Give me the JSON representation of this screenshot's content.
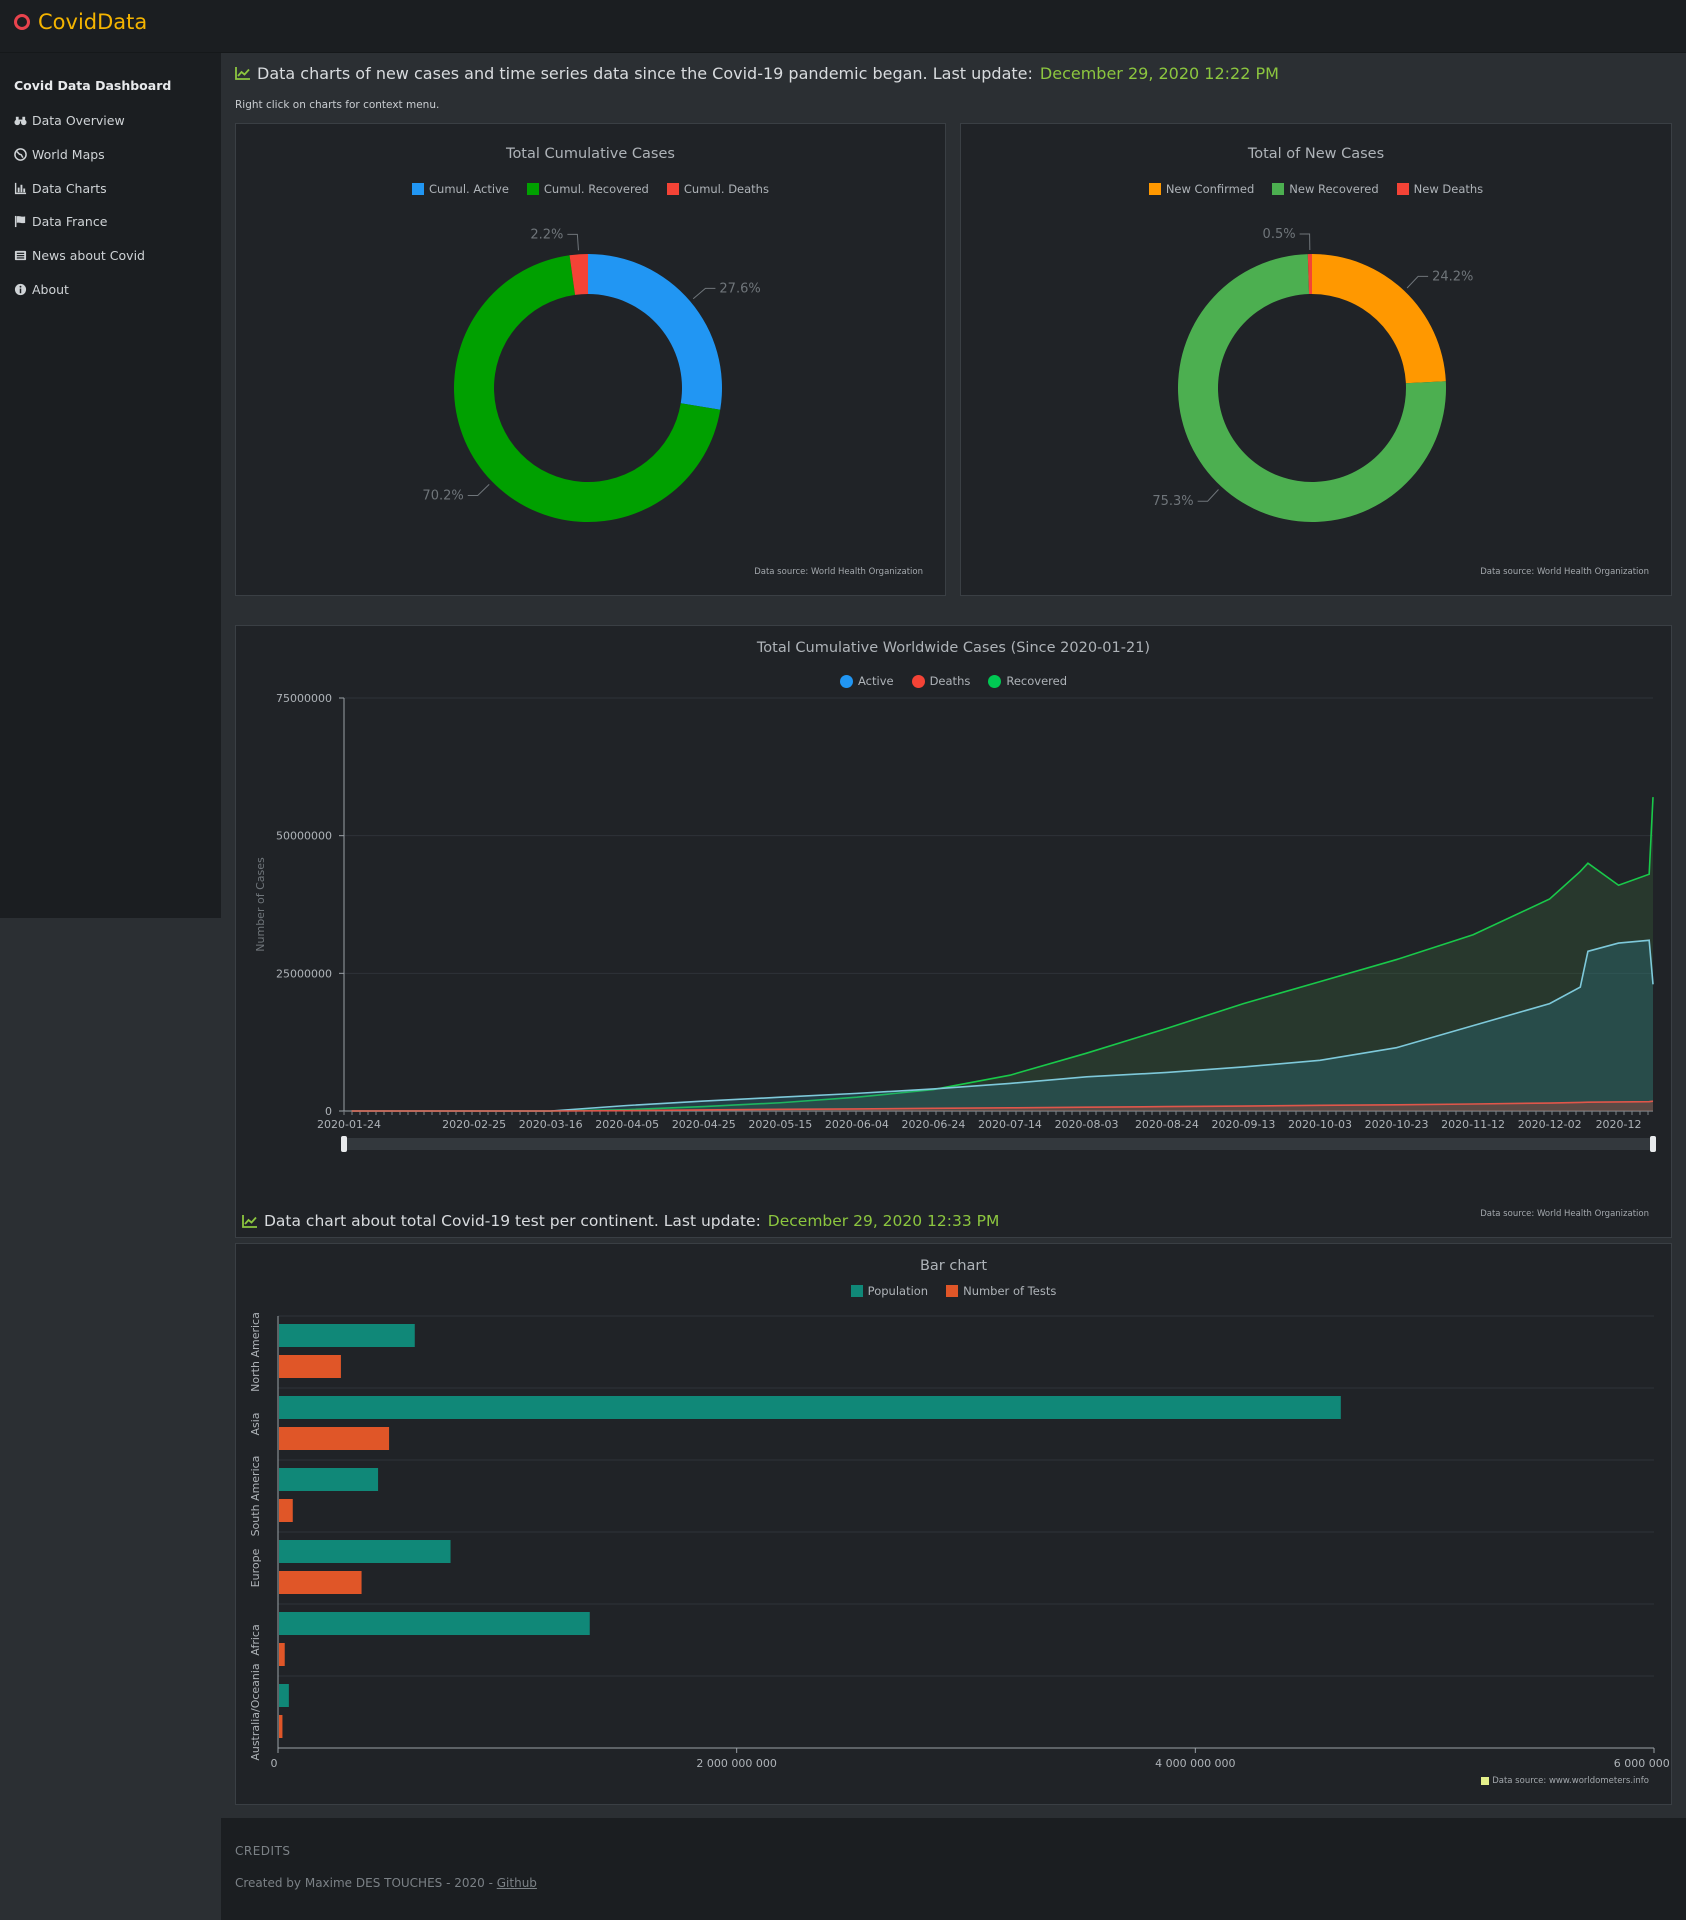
{
  "topbar": {
    "brand": "CovidData"
  },
  "sidebar": {
    "title": "Covid Data Dashboard",
    "items": [
      {
        "label": "Data Overview",
        "icon": "binoculars-icon"
      },
      {
        "label": "World Maps",
        "icon": "globe-icon"
      },
      {
        "label": "Data Charts",
        "icon": "chart-icon"
      },
      {
        "label": "Data France",
        "icon": "flag-icon"
      },
      {
        "label": "News about Covid",
        "icon": "newspaper-icon"
      },
      {
        "label": "About",
        "icon": "info-icon"
      }
    ]
  },
  "section1": {
    "heading": "Data charts of new cases and time series data since the Covid-19 pandemic began. Last update: ",
    "update": "December 29, 2020 12:22 PM",
    "hint": "Right click on charts for context menu."
  },
  "section2": {
    "heading": "Data chart about total Covid-19 test per continent. Last update: ",
    "update": "December 29, 2020 12:33 PM"
  },
  "sources": {
    "who": "Data source: World Health Organization",
    "wom": "Data source: www.worldometers.info"
  },
  "footer": {
    "credits": "CREDITS",
    "created": "Created by Maxime DES TOUCHES - 2020 - ",
    "link": "Github"
  },
  "chart_data": [
    {
      "type": "pie",
      "title": "Total Cumulative Cases",
      "labels": [
        "Cumul. Active",
        "Cumul. Recovered",
        "Cumul. Deaths"
      ],
      "values": [
        27.6,
        70.2,
        2.2
      ],
      "value_labels": [
        "27.6%",
        "70.2%",
        "2.2%"
      ],
      "colors": [
        "#2196f3",
        "#00a000",
        "#f44336"
      ]
    },
    {
      "type": "pie",
      "title": "Total of New Cases",
      "labels": [
        "New Confirmed",
        "New Recovered",
        "New Deaths"
      ],
      "values": [
        24.2,
        75.3,
        0.5
      ],
      "value_labels": [
        "24.2%",
        "75.3%",
        "0.5%"
      ],
      "colors": [
        "#ff9800",
        "#4caf50",
        "#f44336"
      ]
    },
    {
      "type": "area",
      "title": "Total Cumulative Worldwide Cases (Since 2020-01-21)",
      "ylabel": "Number of Cases",
      "ylim": [
        0,
        75000000
      ],
      "yticks": [
        "0",
        "25000000",
        "50000000",
        "75000000"
      ],
      "xticks": [
        "2020-01-24",
        "2020-02-25",
        "2020-03-16",
        "2020-04-05",
        "2020-04-25",
        "2020-05-15",
        "2020-06-04",
        "2020-06-24",
        "2020-07-14",
        "2020-08-03",
        "2020-08-24",
        "2020-09-13",
        "2020-10-03",
        "2020-10-23",
        "2020-11-12",
        "2020-12-02",
        "2020-12"
      ],
      "x": [
        "2020-01-24",
        "2020-03-16",
        "2020-04-05",
        "2020-04-25",
        "2020-05-15",
        "2020-06-04",
        "2020-06-24",
        "2020-07-14",
        "2020-08-03",
        "2020-08-24",
        "2020-09-13",
        "2020-10-03",
        "2020-10-23",
        "2020-11-12",
        "2020-12-02",
        "2020-12-10",
        "2020-12-12",
        "2020-12-20",
        "2020-12-28",
        "2020-12-29"
      ],
      "series": [
        {
          "name": "Active",
          "color": "#2196f3",
          "values": [
            0,
            0,
            1000000,
            1800000,
            2500000,
            3200000,
            4000000,
            5000000,
            6200000,
            7000000,
            8000000,
            9200000,
            11500000,
            15500000,
            19500000,
            22500000,
            29000000,
            30500000,
            31000000,
            23000000
          ]
        },
        {
          "name": "Deaths",
          "color": "#f44336",
          "values": [
            0,
            0,
            60000,
            200000,
            300000,
            380000,
            480000,
            570000,
            690000,
            800000,
            900000,
            1030000,
            1130000,
            1270000,
            1450000,
            1550000,
            1600000,
            1650000,
            1700000,
            1780000
          ]
        },
        {
          "name": "Recovered",
          "color": "#00c853",
          "values": [
            0,
            0,
            250000,
            800000,
            1500000,
            2500000,
            3900000,
            6500000,
            10500000,
            15000000,
            19500000,
            23500000,
            27500000,
            32000000,
            38500000,
            43500000,
            45000000,
            41000000,
            43000000,
            57000000
          ]
        }
      ]
    },
    {
      "type": "bar",
      "title": "Bar chart",
      "orientation": "horizontal",
      "categories": [
        "North America",
        "Asia",
        "South America",
        "Europe",
        "Africa",
        "Australia/Oceania"
      ],
      "xticks": [
        "0",
        "2 000 000 000",
        "4 000 000 000",
        "6 000 000 000"
      ],
      "xlim": [
        0,
        6000000000
      ],
      "series": [
        {
          "name": "Population",
          "color": "#108878",
          "values": [
            592000000,
            4630000000,
            432000000,
            748000000,
            1355000000,
            43000000
          ]
        },
        {
          "name": "Number of Tests",
          "color": "#e05628",
          "values": [
            270000000,
            480000000,
            60000000,
            360000000,
            25000000,
            15000000
          ]
        }
      ]
    }
  ]
}
